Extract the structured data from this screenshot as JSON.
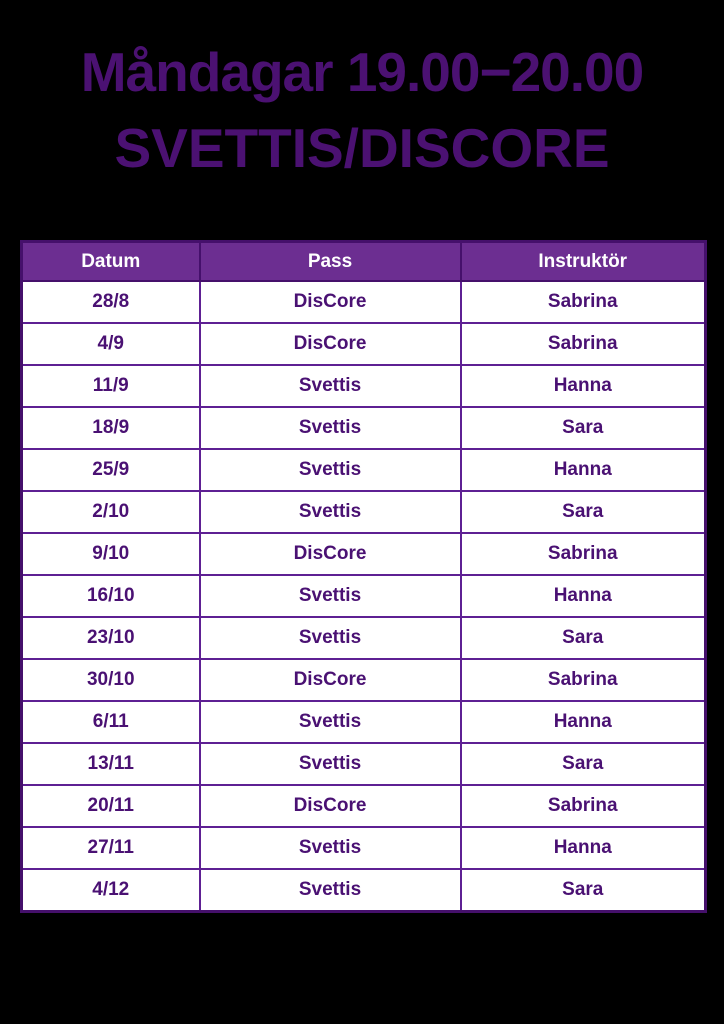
{
  "page": {
    "background_color": "#000000"
  },
  "header": {
    "title_line1": "Måndagar 19.00−20.00",
    "title_line2": "SVETTIS/DISCORE",
    "title_color": "#4B1172"
  },
  "table": {
    "colors": {
      "header_background": "#6C2E91",
      "header_text": "#FFFFFF",
      "cell_background": "#FFFFFF",
      "cell_text": "#4A1173",
      "grid_line": "#5E2093",
      "outer_border": "#45106B"
    },
    "columns": [
      "Datum",
      "Pass",
      "Instruktör"
    ],
    "rows": [
      [
        "28/8",
        "DisCore",
        "Sabrina"
      ],
      [
        "4/9",
        "DisCore",
        "Sabrina"
      ],
      [
        "11/9",
        "Svettis",
        "Hanna"
      ],
      [
        "18/9",
        "Svettis",
        "Sara"
      ],
      [
        "25/9",
        "Svettis",
        "Hanna"
      ],
      [
        "2/10",
        "Svettis",
        "Sara"
      ],
      [
        "9/10",
        "DisCore",
        "Sabrina"
      ],
      [
        "16/10",
        "Svettis",
        "Hanna"
      ],
      [
        "23/10",
        "Svettis",
        "Sara"
      ],
      [
        "30/10",
        "DisCore",
        "Sabrina"
      ],
      [
        "6/11",
        "Svettis",
        "Hanna"
      ],
      [
        "13/11",
        "Svettis",
        "Sara"
      ],
      [
        "20/11",
        "DisCore",
        "Sabrina"
      ],
      [
        "27/11",
        "Svettis",
        "Hanna"
      ],
      [
        "4/12",
        "Svettis",
        "Sara"
      ]
    ]
  }
}
